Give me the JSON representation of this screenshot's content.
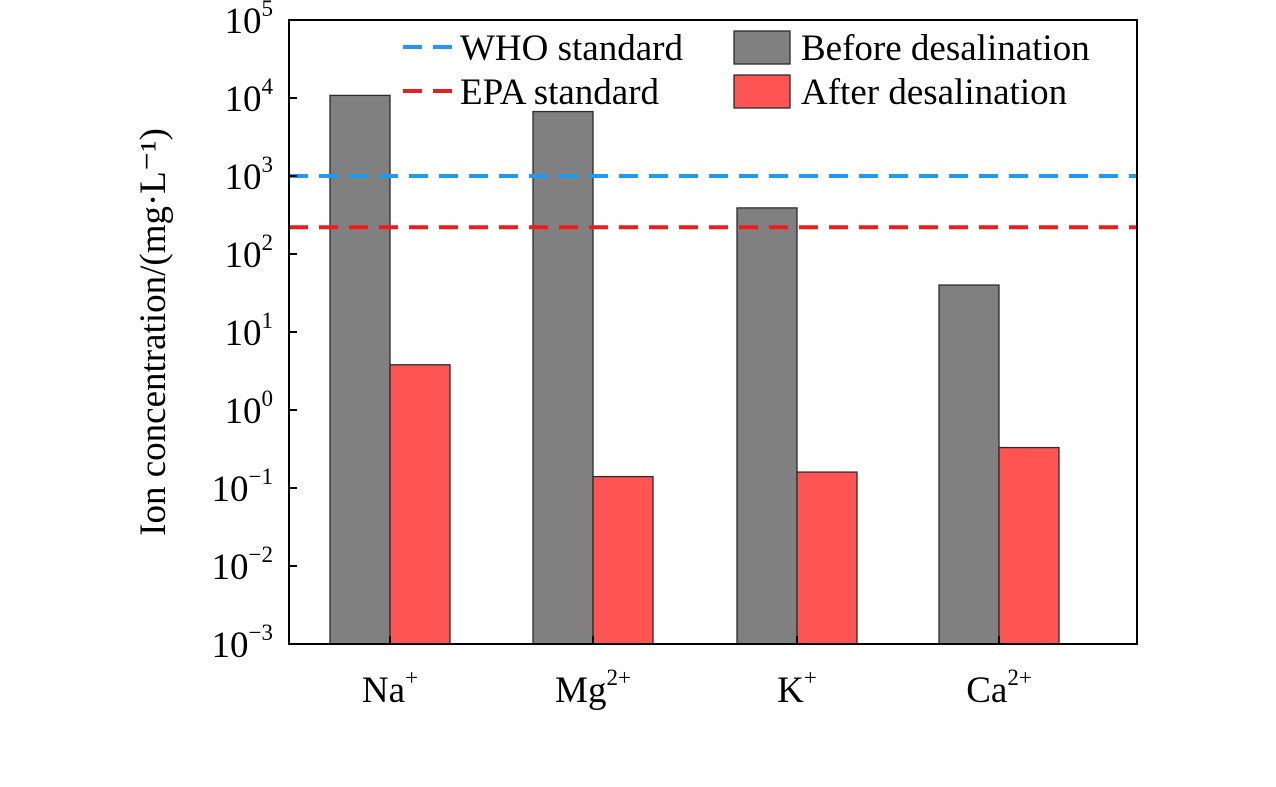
{
  "chart_data": {
    "type": "bar",
    "title": "",
    "xlabel": "",
    "ylabel": "Ion concentration/(mg·L⁻¹)",
    "yscale": "log",
    "ylim": [
      0.001,
      100000
    ],
    "y_ticks": [
      {
        "base": "10",
        "exp": "−3"
      },
      {
        "base": "10",
        "exp": "−2"
      },
      {
        "base": "10",
        "exp": "−1"
      },
      {
        "base": "10",
        "exp": "0"
      },
      {
        "base": "10",
        "exp": "1"
      },
      {
        "base": "10",
        "exp": "2"
      },
      {
        "base": "10",
        "exp": "3"
      },
      {
        "base": "10",
        "exp": "4"
      },
      {
        "base": "10",
        "exp": "5"
      }
    ],
    "categories": [
      {
        "base": "Na",
        "sup": "+"
      },
      {
        "base": "Mg",
        "sup": "2+"
      },
      {
        "base": "K",
        "sup": "+"
      },
      {
        "base": "Ca",
        "sup": "2+"
      }
    ],
    "series": [
      {
        "name": "Before desalination",
        "color": "#808080",
        "values": [
          10800,
          6700,
          390,
          40
        ]
      },
      {
        "name": "After desalination",
        "color": "#ff5454",
        "values": [
          3.8,
          0.14,
          0.16,
          0.33
        ]
      }
    ],
    "reference_lines": [
      {
        "name": "WHO standard",
        "value": 1000,
        "color": "#1e9bf0"
      },
      {
        "name": "EPA standard",
        "value": 220,
        "color": "#ee1c1c"
      }
    ],
    "grid": false,
    "legend_position": "top-right"
  }
}
